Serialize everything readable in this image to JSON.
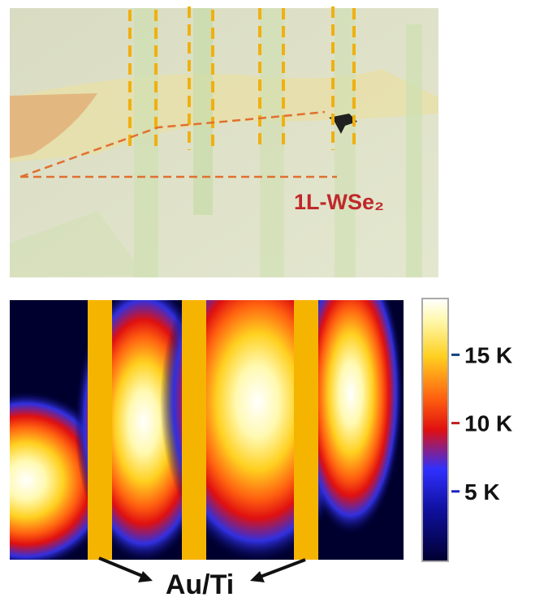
{
  "micrograph": {
    "label": "1L-WSe₂"
  },
  "pl_map": {
    "colorbar": {
      "lim": [
        0,
        19000
      ],
      "ticks": [
        {
          "value": 15000,
          "label": "15 K"
        },
        {
          "value": 10000,
          "label": "10 K"
        },
        {
          "value": 5000,
          "label": "5 K"
        }
      ]
    },
    "annotation": "Au/Ti"
  }
}
